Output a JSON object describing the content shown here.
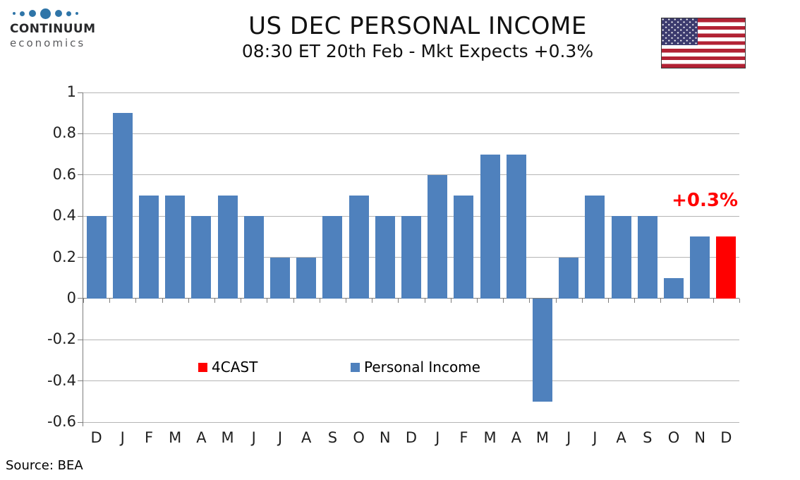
{
  "header": {
    "logo": {
      "name": "CONTINUUM",
      "tagline": "economics"
    },
    "title": "US DEC PERSONAL INCOME",
    "subtitle": "08:30 ET 20th Feb - Mkt Expects +0.3%"
  },
  "chart_data": {
    "type": "bar",
    "title": "US DEC PERSONAL INCOME",
    "subtitle": "08:30 ET 20th Feb - Mkt Expects +0.3%",
    "categories": [
      "D",
      "J",
      "F",
      "M",
      "A",
      "M",
      "J",
      "J",
      "A",
      "S",
      "O",
      "N",
      "D",
      "J",
      "F",
      "M",
      "A",
      "M",
      "J",
      "J",
      "A",
      "S",
      "O",
      "N",
      "D"
    ],
    "series": [
      {
        "name": "Personal Income",
        "color": "#4F81BD",
        "values": [
          0.4,
          0.9,
          0.5,
          0.5,
          0.4,
          0.5,
          0.4,
          0.2,
          0.2,
          0.4,
          0.5,
          0.4,
          0.4,
          0.6,
          0.5,
          0.7,
          0.7,
          -0.5,
          0.2,
          0.5,
          0.4,
          0.4,
          0.1,
          0.3,
          null
        ]
      },
      {
        "name": "4CAST",
        "color": "#FF0000",
        "values": [
          null,
          null,
          null,
          null,
          null,
          null,
          null,
          null,
          null,
          null,
          null,
          null,
          null,
          null,
          null,
          null,
          null,
          null,
          null,
          null,
          null,
          null,
          null,
          null,
          0.3
        ]
      }
    ],
    "ylim": [
      -0.6,
      1
    ],
    "yticks": [
      1,
      0.8,
      0.6,
      0.4,
      0.2,
      0,
      -0.2,
      -0.4,
      -0.6
    ],
    "ytick_labels": [
      "1",
      "0.8",
      "0.6",
      "0.4",
      "0.2",
      "0",
      "-0.2",
      "-0.4",
      "-0.6"
    ],
    "grid": true,
    "legend_position": "inside-bottom",
    "legend": [
      {
        "label": "4CAST",
        "color": "#FF0000"
      },
      {
        "label": "Personal Income",
        "color": "#4F81BD"
      }
    ],
    "annotation": {
      "text": "+0.3%",
      "color": "#FF0000"
    }
  },
  "footer": {
    "source": "Source: BEA"
  },
  "colors": {
    "bar_blue": "#4F81BD",
    "forecast_red": "#FF0000",
    "flag_red": "#B22234",
    "flag_blue": "#3C3B6E"
  }
}
